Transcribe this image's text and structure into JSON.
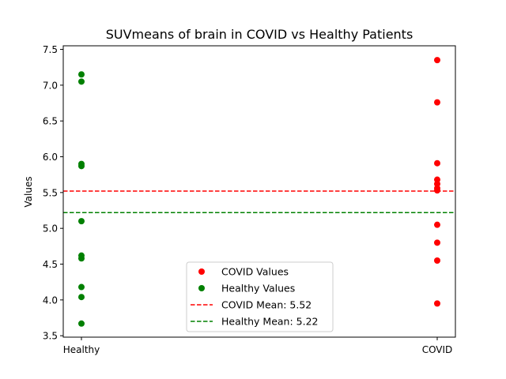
{
  "chart_data": {
    "type": "scatter",
    "title": "SUVmeans of brain in COVID vs Healthy Patients",
    "xlabel": "",
    "ylabel": "Values",
    "categories": [
      "Healthy",
      "COVID"
    ],
    "ylim": [
      3.48,
      7.55
    ],
    "yticks": [
      3.5,
      4.0,
      4.5,
      5.0,
      5.5,
      6.0,
      6.5,
      7.0,
      7.5
    ],
    "ytick_labels": [
      "3.5",
      "4.0",
      "4.5",
      "5.0",
      "5.5",
      "6.0",
      "6.5",
      "7.0",
      "7.5"
    ],
    "grid": false,
    "legend_position": "lower-center",
    "series": [
      {
        "name": "COVID Values",
        "category": "COVID",
        "color": "#ff0000",
        "values": [
          7.35,
          6.76,
          5.91,
          5.68,
          5.62,
          5.56,
          5.53,
          5.05,
          4.8,
          4.55,
          3.95
        ]
      },
      {
        "name": "Healthy Values",
        "category": "Healthy",
        "color": "#008000",
        "values": [
          7.15,
          7.05,
          5.9,
          5.87,
          5.1,
          4.62,
          4.58,
          4.18,
          4.04,
          3.67
        ]
      }
    ],
    "reference_lines": [
      {
        "name": "COVID Mean: 5.52",
        "value": 5.52,
        "color": "#ff0000",
        "style": "dashed"
      },
      {
        "name": "Healthy Mean: 5.22",
        "value": 5.22,
        "color": "#008000",
        "style": "dashed"
      }
    ]
  }
}
